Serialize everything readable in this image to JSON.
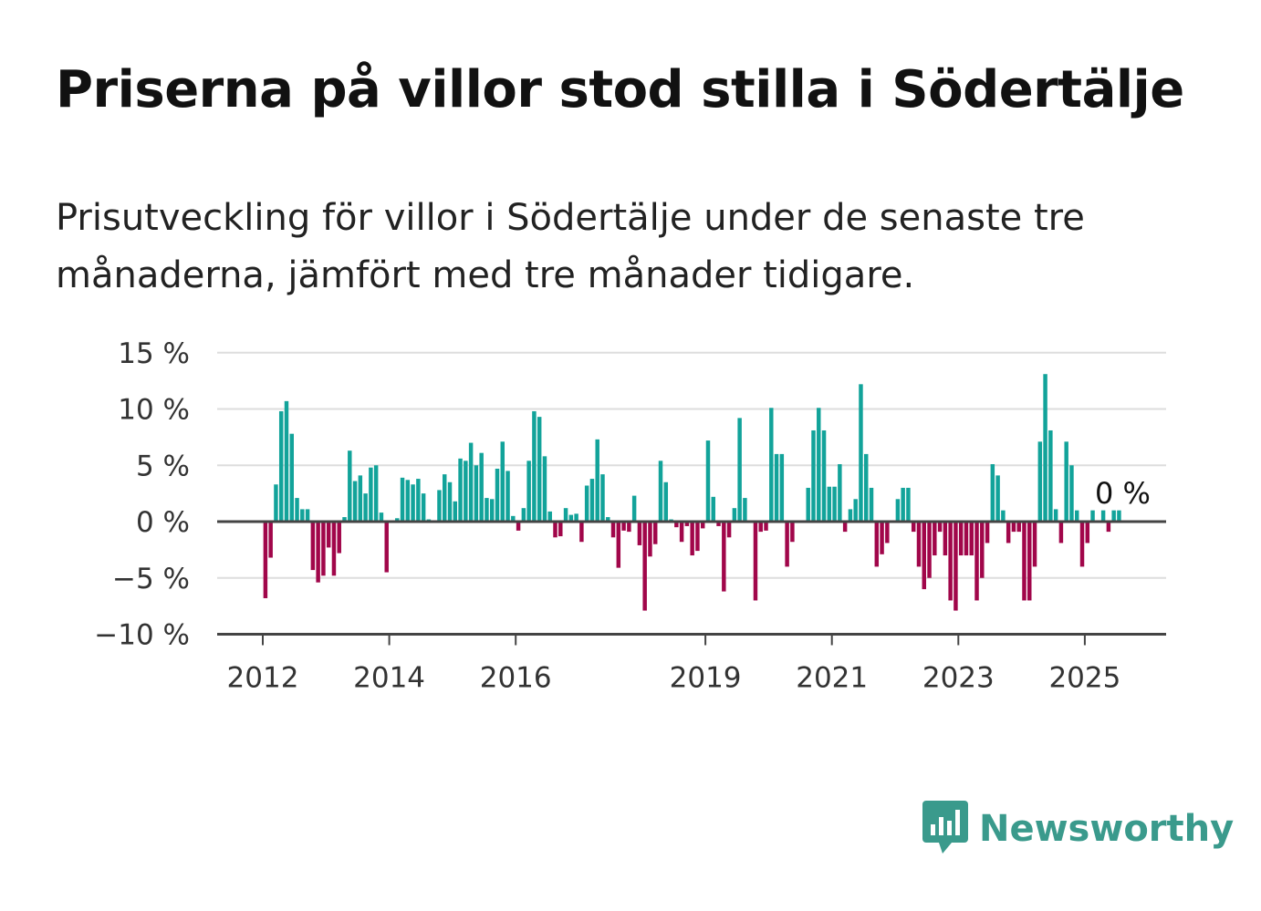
{
  "title": "Priserna på villor stod stilla i Södertälje",
  "subtitle": "Prisutveckling för villor i Södertälje under de senaste tre månaderna, jämfört med tre månader tidigare.",
  "brand": {
    "name": "Newsworthy",
    "icon": "newsworthy-logo-icon"
  },
  "colors": {
    "positive": "#12a39a",
    "negative": "#a1064a",
    "grid": "#dddddd",
    "axis": "#444444",
    "brand": "#3a9a8c"
  },
  "chart_data": {
    "type": "bar",
    "ylim": [
      -10,
      15
    ],
    "yticks": [
      -10,
      -5,
      0,
      5,
      10,
      15
    ],
    "ytick_labels": [
      "−10 %",
      "−5 %",
      "0 %",
      "5 %",
      "10 %",
      "15 %"
    ],
    "xticks": [
      "2012",
      "2014",
      "2016",
      "2019",
      "2021",
      "2023",
      "2025"
    ],
    "grid": true,
    "annotation": {
      "label": "0 %",
      "value": 0
    },
    "x_start": "2012-01",
    "x_end": "2025-07",
    "values": [
      -6.8,
      -3.2,
      3.3,
      9.8,
      10.7,
      7.8,
      2.1,
      1.1,
      1.1,
      -4.3,
      -5.4,
      -4.8,
      -2.3,
      -4.8,
      -2.8,
      0.4,
      6.3,
      3.6,
      4.1,
      2.5,
      4.8,
      5.0,
      0.8,
      -4.5,
      0,
      0.3,
      3.9,
      3.7,
      3.3,
      3.8,
      2.5,
      0.2,
      0,
      2.8,
      4.2,
      3.5,
      1.8,
      5.6,
      5.4,
      7.0,
      5.0,
      6.1,
      2.1,
      2.0,
      4.7,
      7.1,
      4.5,
      0.5,
      -0.8,
      1.2,
      5.4,
      9.8,
      9.3,
      5.8,
      0.9,
      -1.4,
      -1.3,
      1.2,
      0.6,
      0.7,
      -1.8,
      3.2,
      3.8,
      7.3,
      4.2,
      0.4,
      -1.4,
      -4.1,
      -0.8,
      -0.9,
      2.3,
      -2.1,
      -7.9,
      -3.1,
      -2.0,
      5.4,
      3.5,
      0.2,
      -0.5,
      -1.8,
      -0.4,
      -3.0,
      -2.6,
      -0.6,
      7.2,
      2.2,
      -0.4,
      -6.2,
      -1.4,
      1.2,
      9.2,
      2.1,
      0,
      -7.0,
      -0.9,
      -0.8,
      10.1,
      6.0,
      6.0,
      -4.0,
      -1.8,
      0,
      0,
      3.0,
      8.1,
      10.1,
      8.1,
      3.1,
      3.1,
      5.1,
      -0.9,
      1.1,
      2.0,
      12.2,
      6.0,
      3.0,
      -4.0,
      -2.9,
      -1.9,
      0,
      2.0,
      3.0,
      3.0,
      -0.9,
      -4.0,
      -6.0,
      -5.0,
      -3.0,
      -0.9,
      -3.0,
      -7.0,
      -7.9,
      -3.0,
      -3.0,
      -3.0,
      -7.0,
      -5.0,
      -1.9,
      5.1,
      4.1,
      1.0,
      -1.9,
      -0.9,
      -0.9,
      -7.0,
      -7.0,
      -4.0,
      7.1,
      13.1,
      8.1,
      1.1,
      -1.9,
      7.1,
      5.0,
      1.0,
      -4.0,
      -1.9,
      1.0,
      0,
      1.0,
      -0.9,
      1.0,
      1.0
    ]
  }
}
